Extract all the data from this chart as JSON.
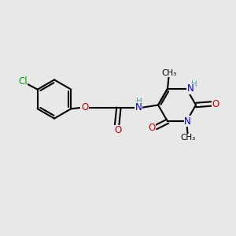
{
  "bg_color": "#e8e8e8",
  "bond_color": "#000000",
  "N_color": "#0000cd",
  "O_color": "#cc0000",
  "Cl_color": "#00aa00",
  "NH_color": "#5f9ea0",
  "bond_width": 1.5,
  "font_size": 8.5,
  "small_font_size": 7.5,
  "xlim": [
    0,
    10
  ],
  "ylim": [
    0,
    10
  ]
}
